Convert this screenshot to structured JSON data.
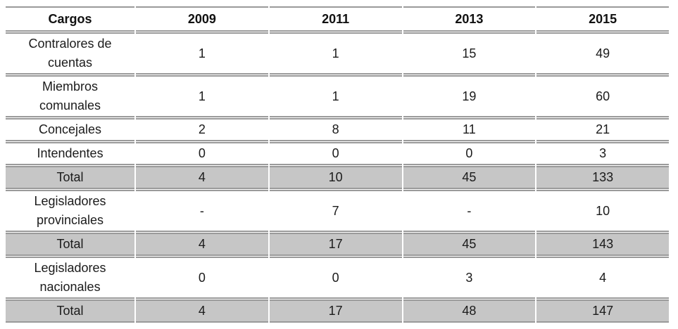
{
  "table": {
    "columns": [
      "Cargos",
      "2009",
      "2011",
      "2013",
      "2015"
    ],
    "rows": [
      {
        "label": "Contralores de cuentas",
        "type": "data",
        "values": [
          "1",
          "1",
          "15",
          "49"
        ]
      },
      {
        "label": "Miembros comunales",
        "type": "data",
        "values": [
          "1",
          "1",
          "19",
          "60"
        ]
      },
      {
        "label": "Concejales",
        "type": "data",
        "values": [
          "2",
          "8",
          "11",
          "21"
        ]
      },
      {
        "label": "Intendentes",
        "type": "data",
        "values": [
          "0",
          "0",
          "0",
          "3"
        ]
      },
      {
        "label": "Total",
        "type": "total",
        "values": [
          "4",
          "10",
          "45",
          "133"
        ]
      },
      {
        "label": "Legisladores provinciales",
        "type": "data",
        "values": [
          "-",
          "7",
          "-",
          "10"
        ]
      },
      {
        "label": "Total",
        "type": "total",
        "values": [
          "4",
          "17",
          "45",
          "143"
        ]
      },
      {
        "label": "Legisladores nacionales",
        "type": "data",
        "values": [
          "0",
          "0",
          "3",
          "4"
        ]
      },
      {
        "label": "Total",
        "type": "total",
        "values": [
          "4",
          "17",
          "48",
          "147"
        ]
      }
    ],
    "colors": {
      "total_row_background": "#c6c6c6",
      "border": "#9a9a9a",
      "text": "#1b1b1b"
    }
  }
}
